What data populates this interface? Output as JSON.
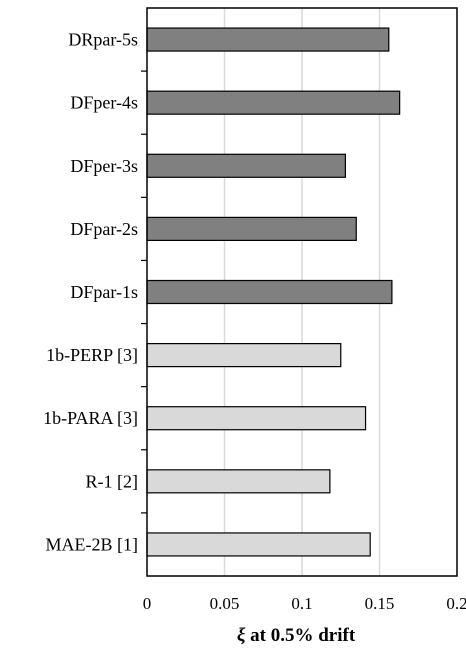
{
  "chart_data": {
    "type": "bar",
    "orientation": "horizontal",
    "categories": [
      "DRpar-5s",
      "DFper-4s",
      "DFper-3s",
      "DFpar-2s",
      "DFpar-1s",
      "1b-PERP [3]",
      "1b-PARA [3]",
      "R-1 [2]",
      "MAE-2B [1]"
    ],
    "values": [
      0.156,
      0.163,
      0.128,
      0.135,
      0.158,
      0.125,
      0.141,
      0.118,
      0.144
    ],
    "bar_colors": [
      "#808080",
      "#808080",
      "#808080",
      "#808080",
      "#808080",
      "#d9d9d9",
      "#d9d9d9",
      "#d9d9d9",
      "#d9d9d9"
    ],
    "bar_stroke": "#000000",
    "title": "",
    "xlabel_symbol": "ξ",
    "xlabel": " at 0.5% drift",
    "ylabel": "",
    "xlim": [
      0,
      0.2
    ],
    "xticks": [
      0,
      0.05,
      0.1,
      0.15,
      0.2
    ],
    "xtick_labels": [
      "0",
      "0.05",
      "0.1",
      "0.15",
      "0.2"
    ],
    "grid": "vertical",
    "grid_color": "#d9d9d9",
    "legend": "none"
  }
}
